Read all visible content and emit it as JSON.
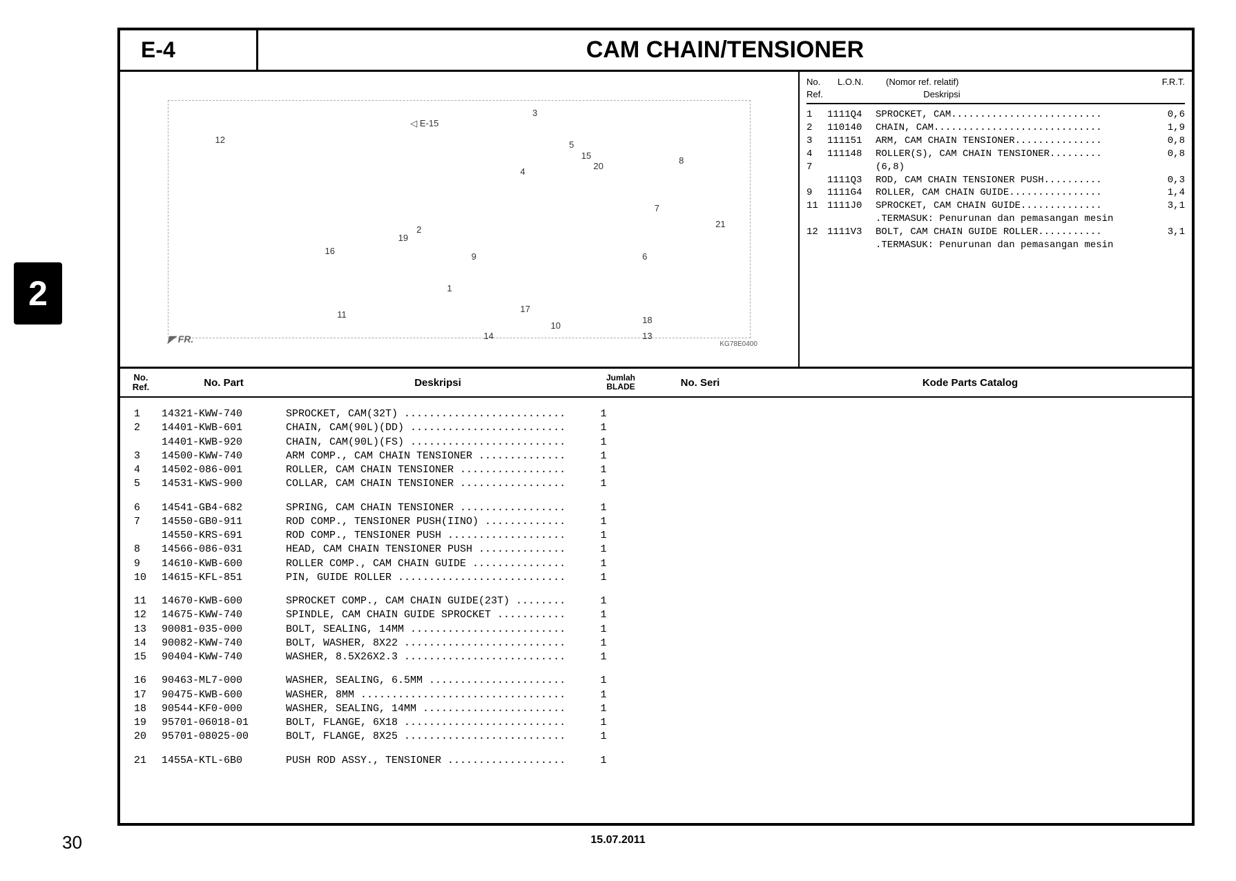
{
  "side_tab": "2",
  "page_number": "30",
  "footer_date": "15.07.2011",
  "section_code": "E-4",
  "section_title": "CAM CHAIN/TENSIONER",
  "diagram": {
    "link_label": "E-15",
    "fr_label": "FR.",
    "image_code": "KG78E0400",
    "callouts": [
      "1",
      "2",
      "3",
      "4",
      "5",
      "6",
      "7",
      "8",
      "9",
      "10",
      "11",
      "12",
      "13",
      "14",
      "15",
      "16",
      "17",
      "18",
      "19",
      "20",
      "21"
    ]
  },
  "ref_header": {
    "c1a": "No.",
    "c1b": "Ref.",
    "c2": "L.O.N.",
    "c3a": "(Nomor ref. relatif)",
    "c3b": "Deskripsi",
    "c4": "F.R.T."
  },
  "ref_rows": [
    {
      "ref": "1",
      "lon": "1111Q4",
      "desc": "SPROCKET, CAM..........................",
      "frt": "0,6"
    },
    {
      "ref": "2",
      "lon": "110140",
      "desc": "CHAIN, CAM.............................",
      "frt": "1,9"
    },
    {
      "ref": "3",
      "lon": "111151",
      "desc": "ARM, CAM CHAIN TENSIONER...............",
      "frt": "0,8"
    },
    {
      "ref": "4",
      "lon": "111148",
      "desc": "ROLLER(S), CAM CHAIN TENSIONER.........",
      "frt": "0,8"
    },
    {
      "ref": "7",
      "lon": "",
      "desc": "(6,8)",
      "frt": ""
    },
    {
      "ref": "",
      "lon": "1111Q3",
      "desc": "ROD, CAM CHAIN TENSIONER PUSH..........",
      "frt": "0,3"
    },
    {
      "ref": "9",
      "lon": "1111G4",
      "desc": "ROLLER, CAM CHAIN GUIDE................",
      "frt": "1,4"
    },
    {
      "ref": "11",
      "lon": "1111J0",
      "desc": "SPROCKET, CAM CHAIN GUIDE..............",
      "frt": "3,1"
    },
    {
      "ref": "",
      "lon": "",
      "desc": ".TERMASUK: Penurunan dan pemasangan mesin",
      "frt": ""
    },
    {
      "ref": "12",
      "lon": "1111V3",
      "desc": "BOLT, CAM CHAIN GUIDE ROLLER...........",
      "frt": "3,1"
    },
    {
      "ref": "",
      "lon": "",
      "desc": ".TERMASUK: Penurunan dan pemasangan mesin",
      "frt": ""
    }
  ],
  "lower_header": {
    "ref_a": "No.",
    "ref_b": "Ref.",
    "part": "No. Part",
    "desc": "Deskripsi",
    "qty_a": "Jumlah",
    "qty_b": "BLADE",
    "seri": "No. Seri",
    "kode": "Kode Parts Catalog"
  },
  "parts": [
    {
      "ref": "1",
      "part": "14321-KWW-740",
      "desc": "SPROCKET, CAM(32T)  ..........................",
      "qty": "1",
      "gap": false
    },
    {
      "ref": "2",
      "part": "14401-KWB-601",
      "desc": "CHAIN, CAM(90L)(DD)  .........................",
      "qty": "1",
      "gap": false
    },
    {
      "ref": "",
      "part": "14401-KWB-920",
      "desc": "CHAIN, CAM(90L)(FS)  .........................",
      "qty": "1",
      "gap": false
    },
    {
      "ref": "3",
      "part": "14500-KWW-740",
      "desc": "ARM COMP., CAM CHAIN TENSIONER  ..............",
      "qty": "1",
      "gap": false
    },
    {
      "ref": "4",
      "part": "14502-086-001",
      "desc": "ROLLER, CAM CHAIN TENSIONER  .................",
      "qty": "1",
      "gap": false
    },
    {
      "ref": "5",
      "part": "14531-KWS-900",
      "desc": "COLLAR, CAM CHAIN TENSIONER  .................",
      "qty": "1",
      "gap": false
    },
    {
      "ref": "6",
      "part": "14541-GB4-682",
      "desc": "SPRING, CAM CHAIN TENSIONER  .................",
      "qty": "1",
      "gap": true
    },
    {
      "ref": "7",
      "part": "14550-GB0-911",
      "desc": "ROD COMP., TENSIONER PUSH(IINO)  .............",
      "qty": "1",
      "gap": false
    },
    {
      "ref": "",
      "part": "14550-KRS-691",
      "desc": "ROD COMP., TENSIONER PUSH  ...................",
      "qty": "1",
      "gap": false
    },
    {
      "ref": "8",
      "part": "14566-086-031",
      "desc": "HEAD, CAM CHAIN TENSIONER PUSH  ..............",
      "qty": "1",
      "gap": false
    },
    {
      "ref": "9",
      "part": "14610-KWB-600",
      "desc": "ROLLER COMP., CAM CHAIN GUIDE  ...............",
      "qty": "1",
      "gap": false
    },
    {
      "ref": "10",
      "part": "14615-KFL-851",
      "desc": "PIN, GUIDE ROLLER  ...........................",
      "qty": "1",
      "gap": false
    },
    {
      "ref": "11",
      "part": "14670-KWB-600",
      "desc": "SPROCKET COMP., CAM CHAIN GUIDE(23T)  ........",
      "qty": "1",
      "gap": true
    },
    {
      "ref": "12",
      "part": "14675-KWW-740",
      "desc": "SPINDLE, CAM CHAIN GUIDE SPROCKET  ...........",
      "qty": "1",
      "gap": false
    },
    {
      "ref": "13",
      "part": "90081-035-000",
      "desc": "BOLT, SEALING, 14MM  .........................",
      "qty": "1",
      "gap": false
    },
    {
      "ref": "14",
      "part": "90082-KWW-740",
      "desc": "BOLT, WASHER, 8X22  ..........................",
      "qty": "1",
      "gap": false
    },
    {
      "ref": "15",
      "part": "90404-KWW-740",
      "desc": "WASHER, 8.5X26X2.3  ..........................",
      "qty": "1",
      "gap": false
    },
    {
      "ref": "16",
      "part": "90463-ML7-000",
      "desc": "WASHER, SEALING, 6.5MM  ......................",
      "qty": "1",
      "gap": true
    },
    {
      "ref": "17",
      "part": "90475-KWB-600",
      "desc": "WASHER, 8MM  .................................",
      "qty": "1",
      "gap": false
    },
    {
      "ref": "18",
      "part": "90544-KF0-000",
      "desc": "WASHER, SEALING, 14MM  .......................",
      "qty": "1",
      "gap": false
    },
    {
      "ref": "19",
      "part": "95701-06018-01",
      "desc": "BOLT, FLANGE, 6X18  ..........................",
      "qty": "1",
      "gap": false
    },
    {
      "ref": "20",
      "part": "95701-08025-00",
      "desc": "BOLT, FLANGE, 8X25  ..........................",
      "qty": "1",
      "gap": false
    },
    {
      "ref": "21",
      "part": "1455A-KTL-6B0",
      "desc": "PUSH ROD ASSY., TENSIONER  ...................",
      "qty": "1",
      "gap": true
    }
  ]
}
